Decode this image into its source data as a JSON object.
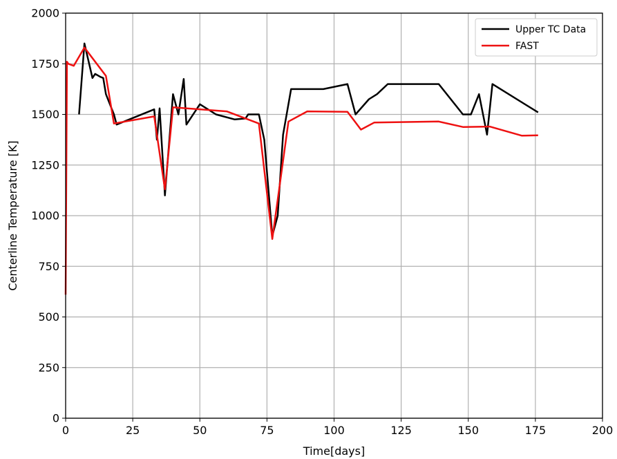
{
  "chart_data": {
    "type": "line",
    "xlabel": "Time[days]",
    "ylabel": "Centerline Temperature [K]",
    "xlim": [
      0,
      200
    ],
    "ylim": [
      0,
      2000
    ],
    "xticks": [
      0,
      25,
      50,
      75,
      100,
      125,
      150,
      175,
      200
    ],
    "yticks": [
      0,
      250,
      500,
      750,
      1000,
      1250,
      1500,
      1750,
      2000
    ],
    "grid": true,
    "legend_position": "top-right",
    "series": [
      {
        "name": "Upper TC Data",
        "color": "#000000",
        "x": [
          5,
          7,
          10,
          11,
          13,
          14,
          15,
          18,
          19,
          33,
          34,
          35,
          37,
          40,
          42,
          44,
          45,
          50,
          56,
          63,
          67,
          68,
          72,
          74,
          77,
          79,
          81,
          84,
          96,
          105,
          108,
          113,
          116,
          120,
          139,
          148,
          151,
          154,
          157,
          159,
          176
        ],
        "y": [
          1500,
          1850,
          1680,
          1700,
          1685,
          1680,
          1600,
          1500,
          1450,
          1525,
          1375,
          1530,
          1100,
          1600,
          1500,
          1675,
          1450,
          1550,
          1500,
          1475,
          1480,
          1500,
          1500,
          1375,
          900,
          1000,
          1400,
          1625,
          1625,
          1650,
          1500,
          1575,
          1600,
          1650,
          1650,
          1500,
          1500,
          1600,
          1400,
          1650,
          1510
        ]
      },
      {
        "name": "FAST",
        "color": "#ee1111",
        "x": [
          0,
          0.5,
          1,
          3,
          7,
          15,
          18,
          33,
          37,
          40,
          60,
          72,
          77,
          83,
          90,
          105,
          110,
          115,
          139,
          148,
          158,
          170,
          176
        ],
        "y": [
          610,
          1760,
          1750,
          1740,
          1830,
          1690,
          1455,
          1490,
          1130,
          1535,
          1515,
          1455,
          885,
          1465,
          1515,
          1513,
          1425,
          1460,
          1465,
          1438,
          1440,
          1395,
          1397
        ]
      }
    ]
  }
}
